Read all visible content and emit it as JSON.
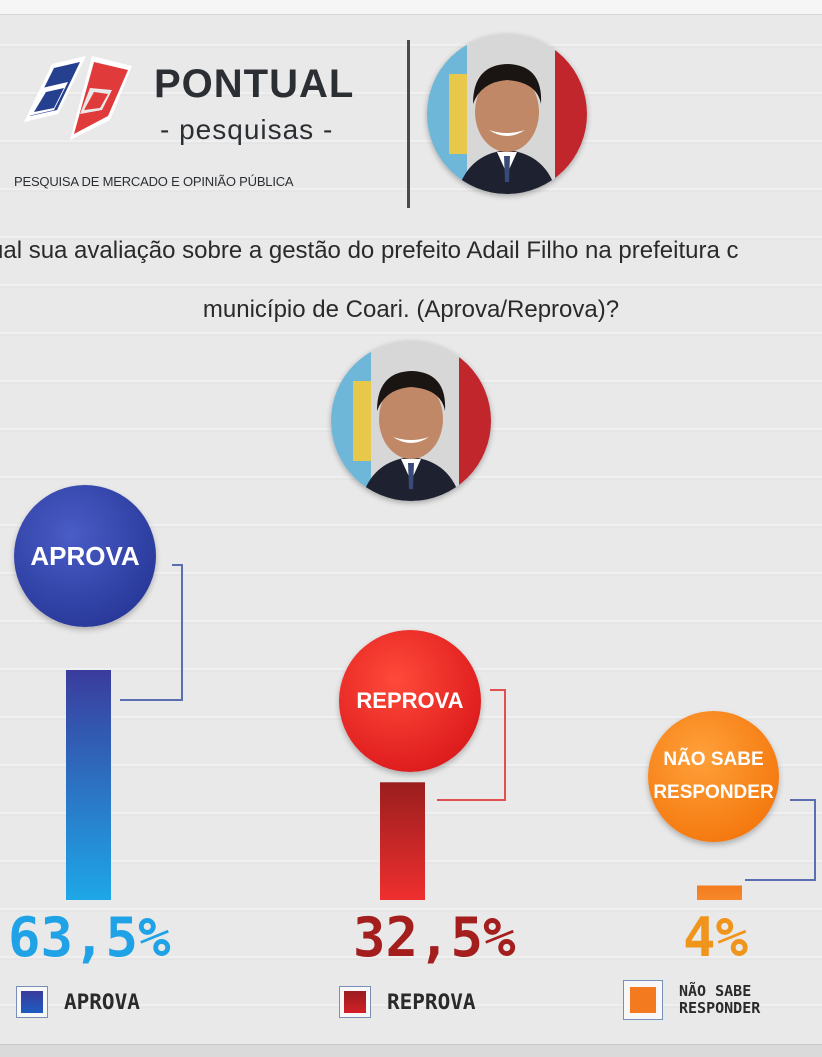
{
  "brand": {
    "name": "PONTUAL",
    "sub": "- pesquisas -",
    "tagline": "PESQUISA DE MERCADO E OPINIÃO PÚBLICA"
  },
  "question": {
    "line1": "ual sua avaliação sobre a gestão do prefeito Adail Filho na prefeitura c",
    "line2": "município de Coari. (Aprova/Reprova)?"
  },
  "chart_data": {
    "type": "bar",
    "categories": [
      "APROVA",
      "REPROVA",
      "NÃO SABE RESPONDER"
    ],
    "values": [
      63.5,
      32.5,
      4
    ],
    "value_labels": [
      "63,5%",
      "32,5%",
      "4%"
    ],
    "unit": "%",
    "title": "",
    "xlabel": "",
    "ylabel": "",
    "ylim": [
      0,
      100
    ],
    "grid": false,
    "legend_position": "bottom",
    "bubble_labels": [
      "APROVA",
      "REPROVA",
      "NÃO SABE RESPONDER"
    ],
    "legend": [
      {
        "label": "APROVA",
        "color": "#2a3a9c"
      },
      {
        "label": "REPROVA",
        "color": "#b5121b"
      },
      {
        "label": "NÃO SABE RESPONDER",
        "color": "#f47a1f"
      }
    ],
    "colors": {
      "aprova": [
        "#1ea7e8",
        "#3a3c9c"
      ],
      "reprova": [
        "#ef2f2f",
        "#9a1e1e"
      ],
      "nsr": [
        "#f68a2a",
        "#f47a1f"
      ]
    }
  }
}
